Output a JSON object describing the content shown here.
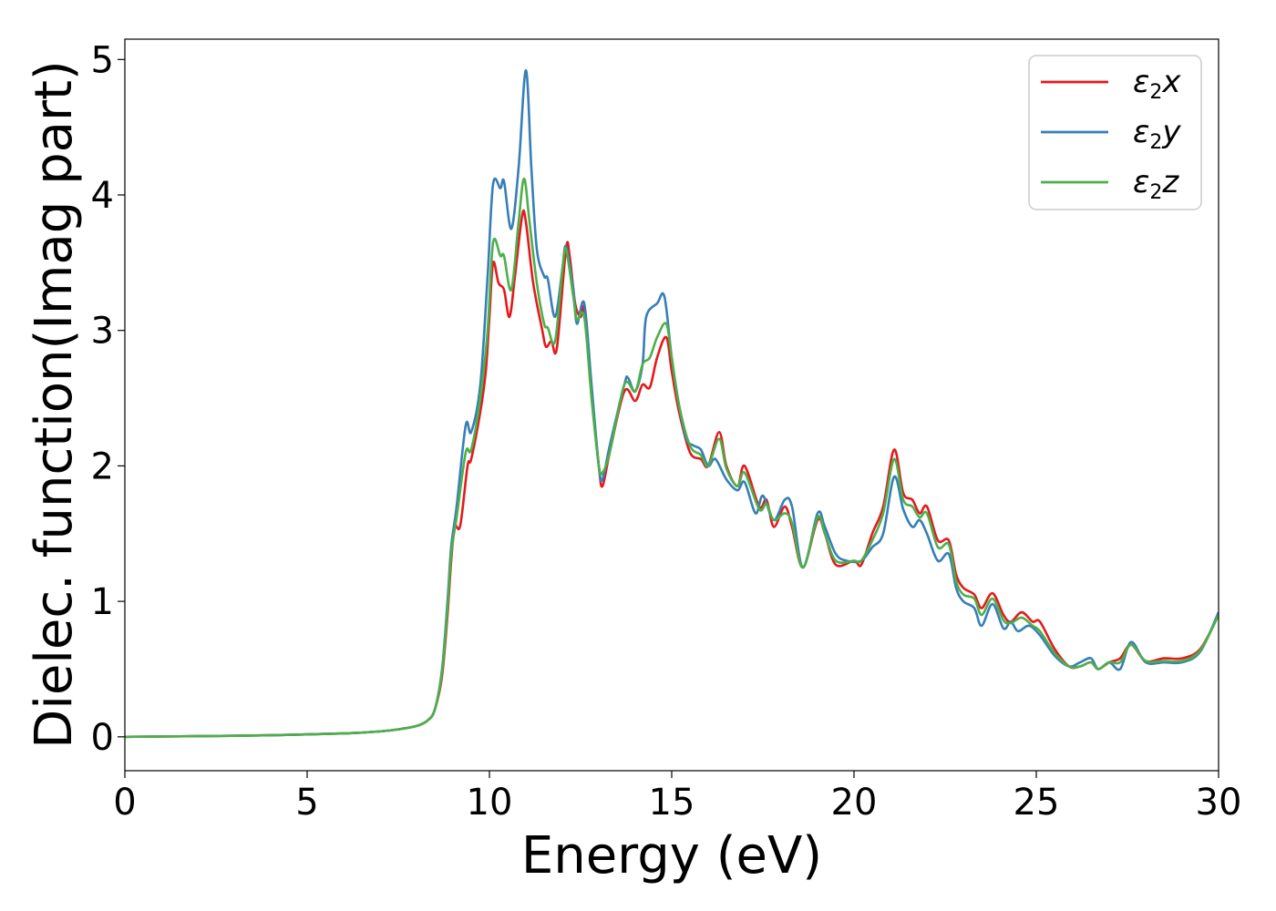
{
  "chart_data": {
    "type": "line",
    "title": "",
    "xlabel": "Energy (eV)",
    "ylabel": "Dielec. function(Imag part)",
    "xlim": [
      0,
      30
    ],
    "ylim": [
      -0.25,
      5.15
    ],
    "xticks": [
      0,
      5,
      10,
      15,
      20,
      25,
      30
    ],
    "yticks": [
      0,
      1,
      2,
      3,
      4,
      5
    ],
    "grid": false,
    "legend_position": "top-right",
    "series": [
      {
        "name": "ε2x",
        "name_base": "ε",
        "name_sub": "2",
        "name_var": "x",
        "color": "#e41a1c",
        "points": [
          [
            0,
            0.0
          ],
          [
            2,
            0.005
          ],
          [
            4,
            0.012
          ],
          [
            6,
            0.025
          ],
          [
            7,
            0.04
          ],
          [
            7.5,
            0.055
          ],
          [
            8,
            0.08
          ],
          [
            8.3,
            0.12
          ],
          [
            8.5,
            0.2
          ],
          [
            8.7,
            0.45
          ],
          [
            8.85,
            0.9
          ],
          [
            8.95,
            1.3
          ],
          [
            9.05,
            1.55
          ],
          [
            9.2,
            1.56
          ],
          [
            9.4,
            2.0
          ],
          [
            9.5,
            2.05
          ],
          [
            9.75,
            2.4
          ],
          [
            9.9,
            2.7
          ],
          [
            10.0,
            3.1
          ],
          [
            10.1,
            3.5
          ],
          [
            10.25,
            3.35
          ],
          [
            10.4,
            3.3
          ],
          [
            10.55,
            3.1
          ],
          [
            10.7,
            3.4
          ],
          [
            10.9,
            3.85
          ],
          [
            11.0,
            3.8
          ],
          [
            11.2,
            3.35
          ],
          [
            11.45,
            3.0
          ],
          [
            11.55,
            2.88
          ],
          [
            11.7,
            2.92
          ],
          [
            11.85,
            2.87
          ],
          [
            12.1,
            3.6
          ],
          [
            12.2,
            3.55
          ],
          [
            12.35,
            3.2
          ],
          [
            12.5,
            3.1
          ],
          [
            12.6,
            3.15
          ],
          [
            12.8,
            2.55
          ],
          [
            13.0,
            2.0
          ],
          [
            13.1,
            1.85
          ],
          [
            13.3,
            2.1
          ],
          [
            13.7,
            2.55
          ],
          [
            14.0,
            2.48
          ],
          [
            14.2,
            2.6
          ],
          [
            14.4,
            2.58
          ],
          [
            14.6,
            2.8
          ],
          [
            14.85,
            2.95
          ],
          [
            15.0,
            2.7
          ],
          [
            15.2,
            2.4
          ],
          [
            15.5,
            2.1
          ],
          [
            15.8,
            2.05
          ],
          [
            16.0,
            2.0
          ],
          [
            16.3,
            2.25
          ],
          [
            16.5,
            2.0
          ],
          [
            16.8,
            1.85
          ],
          [
            17.0,
            2.0
          ],
          [
            17.4,
            1.7
          ],
          [
            17.6,
            1.75
          ],
          [
            17.8,
            1.55
          ],
          [
            18.1,
            1.7
          ],
          [
            18.3,
            1.55
          ],
          [
            18.6,
            1.25
          ],
          [
            19.0,
            1.6
          ],
          [
            19.2,
            1.5
          ],
          [
            19.5,
            1.27
          ],
          [
            20.0,
            1.3
          ],
          [
            20.2,
            1.27
          ],
          [
            20.5,
            1.5
          ],
          [
            20.8,
            1.7
          ],
          [
            21.1,
            2.12
          ],
          [
            21.35,
            1.8
          ],
          [
            21.6,
            1.75
          ],
          [
            21.8,
            1.65
          ],
          [
            22.0,
            1.7
          ],
          [
            22.3,
            1.45
          ],
          [
            22.6,
            1.45
          ],
          [
            22.8,
            1.2
          ],
          [
            23.0,
            1.1
          ],
          [
            23.3,
            1.05
          ],
          [
            23.5,
            0.95
          ],
          [
            23.8,
            1.06
          ],
          [
            24.1,
            0.9
          ],
          [
            24.3,
            0.85
          ],
          [
            24.6,
            0.92
          ],
          [
            24.9,
            0.85
          ],
          [
            25.1,
            0.85
          ],
          [
            25.5,
            0.65
          ],
          [
            25.9,
            0.52
          ],
          [
            26.2,
            0.52
          ],
          [
            26.5,
            0.55
          ],
          [
            26.7,
            0.5
          ],
          [
            27.0,
            0.55
          ],
          [
            27.3,
            0.58
          ],
          [
            27.6,
            0.68
          ],
          [
            28.0,
            0.56
          ],
          [
            28.5,
            0.58
          ],
          [
            29.0,
            0.58
          ],
          [
            29.5,
            0.65
          ],
          [
            30,
            0.9
          ]
        ]
      },
      {
        "name": "ε2y",
        "name_base": "ε",
        "name_sub": "2",
        "name_var": "y",
        "color": "#377eb8",
        "points": [
          [
            0,
            0.0
          ],
          [
            2,
            0.005
          ],
          [
            4,
            0.012
          ],
          [
            6,
            0.025
          ],
          [
            7,
            0.04
          ],
          [
            7.5,
            0.055
          ],
          [
            8,
            0.08
          ],
          [
            8.3,
            0.12
          ],
          [
            8.5,
            0.2
          ],
          [
            8.7,
            0.5
          ],
          [
            8.85,
            1.0
          ],
          [
            8.95,
            1.4
          ],
          [
            9.1,
            1.7
          ],
          [
            9.35,
            2.3
          ],
          [
            9.5,
            2.25
          ],
          [
            9.75,
            2.6
          ],
          [
            9.95,
            3.4
          ],
          [
            10.1,
            4.08
          ],
          [
            10.3,
            4.05
          ],
          [
            10.4,
            4.1
          ],
          [
            10.6,
            3.75
          ],
          [
            10.8,
            4.2
          ],
          [
            11.0,
            4.92
          ],
          [
            11.15,
            4.2
          ],
          [
            11.3,
            3.6
          ],
          [
            11.5,
            3.4
          ],
          [
            11.6,
            3.38
          ],
          [
            11.8,
            3.1
          ],
          [
            12.0,
            3.45
          ],
          [
            12.1,
            3.62
          ],
          [
            12.3,
            3.3
          ],
          [
            12.4,
            3.05
          ],
          [
            12.6,
            3.2
          ],
          [
            12.8,
            2.6
          ],
          [
            13.0,
            2.0
          ],
          [
            13.1,
            1.9
          ],
          [
            13.3,
            2.15
          ],
          [
            13.7,
            2.6
          ],
          [
            13.8,
            2.65
          ],
          [
            14.0,
            2.55
          ],
          [
            14.2,
            2.75
          ],
          [
            14.3,
            3.1
          ],
          [
            14.6,
            3.2
          ],
          [
            14.8,
            3.25
          ],
          [
            15.0,
            2.8
          ],
          [
            15.2,
            2.45
          ],
          [
            15.4,
            2.2
          ],
          [
            15.6,
            2.15
          ],
          [
            15.8,
            2.12
          ],
          [
            16.0,
            2.0
          ],
          [
            16.2,
            2.05
          ],
          [
            16.5,
            1.9
          ],
          [
            16.8,
            1.82
          ],
          [
            17.0,
            1.88
          ],
          [
            17.3,
            1.65
          ],
          [
            17.5,
            1.78
          ],
          [
            17.8,
            1.6
          ],
          [
            18.1,
            1.75
          ],
          [
            18.3,
            1.7
          ],
          [
            18.6,
            1.25
          ],
          [
            19.0,
            1.65
          ],
          [
            19.2,
            1.55
          ],
          [
            19.5,
            1.35
          ],
          [
            19.8,
            1.3
          ],
          [
            20.2,
            1.3
          ],
          [
            20.5,
            1.4
          ],
          [
            20.8,
            1.5
          ],
          [
            21.1,
            1.92
          ],
          [
            21.35,
            1.68
          ],
          [
            21.6,
            1.55
          ],
          [
            21.8,
            1.6
          ],
          [
            22.0,
            1.5
          ],
          [
            22.3,
            1.3
          ],
          [
            22.6,
            1.35
          ],
          [
            22.8,
            1.1
          ],
          [
            23.0,
            1.0
          ],
          [
            23.3,
            0.95
          ],
          [
            23.5,
            0.82
          ],
          [
            23.8,
            0.98
          ],
          [
            24.1,
            0.8
          ],
          [
            24.3,
            0.85
          ],
          [
            24.5,
            0.78
          ],
          [
            24.8,
            0.82
          ],
          [
            25.1,
            0.75
          ],
          [
            25.5,
            0.6
          ],
          [
            25.9,
            0.52
          ],
          [
            26.2,
            0.55
          ],
          [
            26.5,
            0.58
          ],
          [
            26.7,
            0.5
          ],
          [
            27.0,
            0.55
          ],
          [
            27.3,
            0.5
          ],
          [
            27.6,
            0.7
          ],
          [
            28.0,
            0.55
          ],
          [
            28.5,
            0.55
          ],
          [
            29.0,
            0.55
          ],
          [
            29.5,
            0.63
          ],
          [
            30,
            0.92
          ]
        ]
      },
      {
        "name": "ε2z",
        "name_base": "ε",
        "name_sub": "2",
        "name_var": "z",
        "color": "#4daf4a",
        "points": [
          [
            0,
            0.0
          ],
          [
            2,
            0.005
          ],
          [
            4,
            0.012
          ],
          [
            6,
            0.025
          ],
          [
            7,
            0.04
          ],
          [
            7.5,
            0.055
          ],
          [
            8,
            0.08
          ],
          [
            8.3,
            0.12
          ],
          [
            8.5,
            0.2
          ],
          [
            8.7,
            0.48
          ],
          [
            8.85,
            0.95
          ],
          [
            8.95,
            1.35
          ],
          [
            9.1,
            1.62
          ],
          [
            9.35,
            2.1
          ],
          [
            9.5,
            2.12
          ],
          [
            9.75,
            2.5
          ],
          [
            9.95,
            3.0
          ],
          [
            10.1,
            3.65
          ],
          [
            10.3,
            3.55
          ],
          [
            10.4,
            3.55
          ],
          [
            10.6,
            3.3
          ],
          [
            10.8,
            3.8
          ],
          [
            10.95,
            4.12
          ],
          [
            11.1,
            3.8
          ],
          [
            11.3,
            3.35
          ],
          [
            11.5,
            3.05
          ],
          [
            11.6,
            3.02
          ],
          [
            11.8,
            2.92
          ],
          [
            12.0,
            3.45
          ],
          [
            12.1,
            3.6
          ],
          [
            12.3,
            3.25
          ],
          [
            12.4,
            3.08
          ],
          [
            12.6,
            3.1
          ],
          [
            12.8,
            2.5
          ],
          [
            13.0,
            2.0
          ],
          [
            13.1,
            1.95
          ],
          [
            13.3,
            2.1
          ],
          [
            13.7,
            2.6
          ],
          [
            14.0,
            2.55
          ],
          [
            14.2,
            2.75
          ],
          [
            14.4,
            2.8
          ],
          [
            14.6,
            2.95
          ],
          [
            14.85,
            3.05
          ],
          [
            15.0,
            2.8
          ],
          [
            15.2,
            2.45
          ],
          [
            15.5,
            2.15
          ],
          [
            15.8,
            2.08
          ],
          [
            16.0,
            2.0
          ],
          [
            16.3,
            2.2
          ],
          [
            16.5,
            1.98
          ],
          [
            16.8,
            1.85
          ],
          [
            17.0,
            1.95
          ],
          [
            17.4,
            1.68
          ],
          [
            17.6,
            1.72
          ],
          [
            17.8,
            1.6
          ],
          [
            18.1,
            1.65
          ],
          [
            18.3,
            1.58
          ],
          [
            18.6,
            1.25
          ],
          [
            19.0,
            1.62
          ],
          [
            19.2,
            1.5
          ],
          [
            19.5,
            1.3
          ],
          [
            20.0,
            1.3
          ],
          [
            20.2,
            1.3
          ],
          [
            20.5,
            1.45
          ],
          [
            20.8,
            1.65
          ],
          [
            21.1,
            2.05
          ],
          [
            21.35,
            1.75
          ],
          [
            21.6,
            1.7
          ],
          [
            21.8,
            1.62
          ],
          [
            22.0,
            1.65
          ],
          [
            22.3,
            1.4
          ],
          [
            22.6,
            1.42
          ],
          [
            22.8,
            1.15
          ],
          [
            23.0,
            1.05
          ],
          [
            23.3,
            1.02
          ],
          [
            23.5,
            0.9
          ],
          [
            23.8,
            1.02
          ],
          [
            24.1,
            0.86
          ],
          [
            24.3,
            0.84
          ],
          [
            24.6,
            0.88
          ],
          [
            24.9,
            0.82
          ],
          [
            25.1,
            0.78
          ],
          [
            25.5,
            0.62
          ],
          [
            25.9,
            0.52
          ],
          [
            26.2,
            0.52
          ],
          [
            26.5,
            0.55
          ],
          [
            26.7,
            0.5
          ],
          [
            27.0,
            0.55
          ],
          [
            27.3,
            0.55
          ],
          [
            27.6,
            0.68
          ],
          [
            28.0,
            0.56
          ],
          [
            28.5,
            0.56
          ],
          [
            29.0,
            0.56
          ],
          [
            29.5,
            0.64
          ],
          [
            30,
            0.9
          ]
        ]
      }
    ]
  }
}
